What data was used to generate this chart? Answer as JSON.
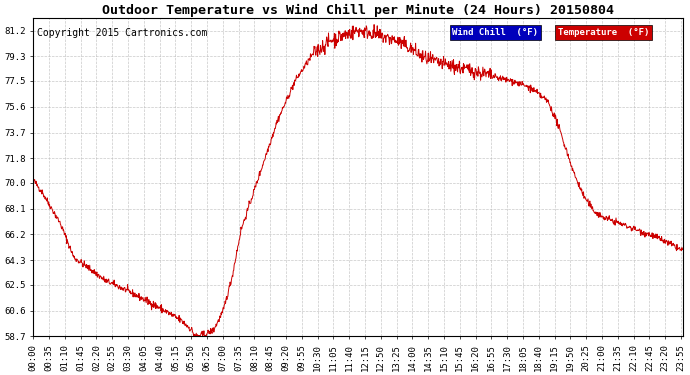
{
  "title": "Outdoor Temperature vs Wind Chill per Minute (24 Hours) 20150804",
  "copyright": "Copyright 2015 Cartronics.com",
  "legend_label_wind": "Wind Chill  (°F)",
  "legend_label_temp": "Temperature  (°F)",
  "legend_color_wind": "#0000bb",
  "legend_color_temp": "#cc0000",
  "line_color": "#cc0000",
  "ylim": [
    58.7,
    82.1
  ],
  "yticks": [
    58.7,
    60.6,
    62.5,
    64.3,
    66.2,
    68.1,
    70.0,
    71.8,
    73.7,
    75.6,
    77.5,
    79.3,
    81.2
  ],
  "bg_color": "#ffffff",
  "grid_color": "#bbbbbb",
  "title_fontsize": 9.5,
  "copyright_fontsize": 7,
  "tick_fontsize": 6.5,
  "legend_fontsize": 6.5,
  "keypoints_t": [
    0,
    20,
    60,
    90,
    120,
    160,
    200,
    240,
    280,
    310,
    330,
    350,
    355,
    360,
    380,
    400,
    420,
    440,
    460,
    500,
    540,
    580,
    620,
    660,
    700,
    720,
    740,
    760,
    780,
    800,
    820,
    840,
    860,
    880,
    900,
    940,
    980,
    1020,
    1060,
    1100,
    1140,
    1160,
    1180,
    1200,
    1220,
    1240,
    1260,
    1300,
    1340,
    1380,
    1410,
    1439
  ],
  "keypoints_v": [
    70.2,
    69.3,
    67.0,
    64.5,
    63.8,
    62.8,
    62.2,
    61.5,
    60.8,
    60.2,
    59.8,
    59.2,
    58.9,
    58.7,
    58.8,
    59.2,
    60.5,
    63.0,
    66.5,
    70.5,
    74.5,
    77.5,
    79.5,
    80.5,
    81.0,
    81.2,
    81.1,
    80.9,
    80.7,
    80.5,
    80.2,
    79.8,
    79.3,
    79.0,
    78.8,
    78.5,
    78.2,
    77.8,
    77.5,
    77.0,
    76.0,
    74.5,
    72.5,
    70.5,
    69.0,
    68.0,
    67.5,
    67.0,
    66.5,
    66.0,
    65.5,
    65.0
  ],
  "noise_seed": 42,
  "xtick_step": 35
}
